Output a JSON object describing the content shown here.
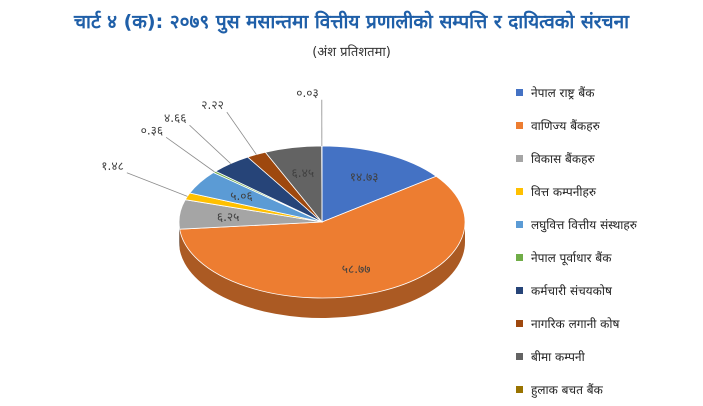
{
  "chart_data": {
    "type": "pie",
    "title": "चार्ट ४ (क): २०७९ पुस मसान्तमा वित्तीय प्रणालीको सम्पत्ति र दायित्वको संरचना",
    "subtitle": "(अंश प्रतिशतमा)",
    "legend_position": "right",
    "slices": [
      {
        "name": "नेपाल राष्ट्र बैंक",
        "value": 14.73,
        "label": "१४.७३",
        "color": "#4472c4"
      },
      {
        "name": "वाणिज्य बैंकहरु",
        "value": 58.77,
        "label": "५८.७७",
        "color": "#ed7d31"
      },
      {
        "name": "विकास बैंकहरु",
        "value": 6.25,
        "label": "६.२५",
        "color": "#a5a5a5"
      },
      {
        "name": "वित्त कम्पनीहरु",
        "value": 1.48,
        "label": "१.४८",
        "color": "#ffc000"
      },
      {
        "name": "लघुवित्त वित्तीय संस्थाहरु",
        "value": 5.06,
        "label": "५.०६",
        "color": "#5b9bd5"
      },
      {
        "name": "नेपाल पूर्वाधार बैंक",
        "value": 0.36,
        "label": "०.३६",
        "color": "#70ad47"
      },
      {
        "name": "कर्मचारी संचयकोष",
        "value": 4.66,
        "label": "४.६६",
        "color": "#264478"
      },
      {
        "name": "नागरिक लगानी कोष",
        "value": 2.22,
        "label": "२.२२",
        "color": "#9e480e"
      },
      {
        "name": "बीमा कम्पनी",
        "value": 6.45,
        "label": "६.४५",
        "color": "#636363"
      },
      {
        "name": "हुलाक बचत बैंक",
        "value": 0.03,
        "label": "०.०३",
        "color": "#997300"
      }
    ]
  }
}
